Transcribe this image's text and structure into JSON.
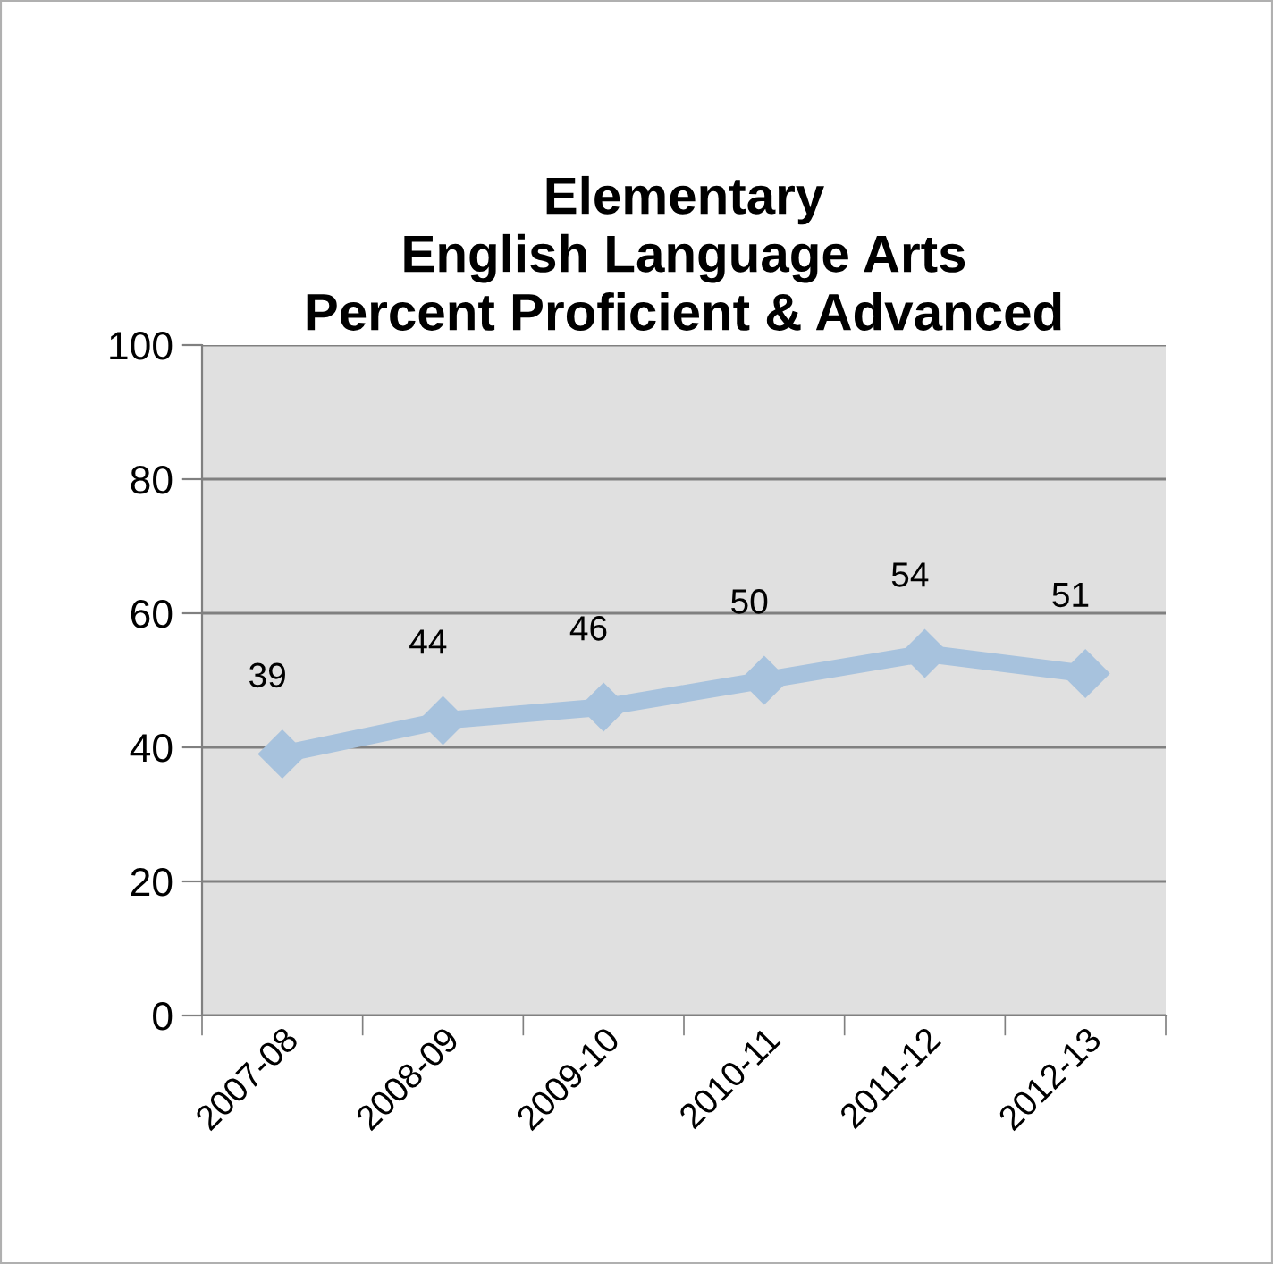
{
  "chart_data": {
    "type": "line",
    "title": "Elementary\nEnglish Language Arts\nPercent Proficient & Advanced",
    "categories": [
      "2007-08",
      "2008-09",
      "2009-10",
      "2010-11",
      "2011-12",
      "2012-13"
    ],
    "series": [
      {
        "color": "#a7c2dd",
        "values": [
          39,
          44,
          46,
          50,
          54,
          51
        ]
      }
    ],
    "ylim": [
      0,
      100
    ],
    "yticks": [
      0,
      20,
      40,
      60,
      80,
      100
    ],
    "grid": "y",
    "marker": "diamond",
    "line_style": "solid",
    "data_labels": true
  }
}
